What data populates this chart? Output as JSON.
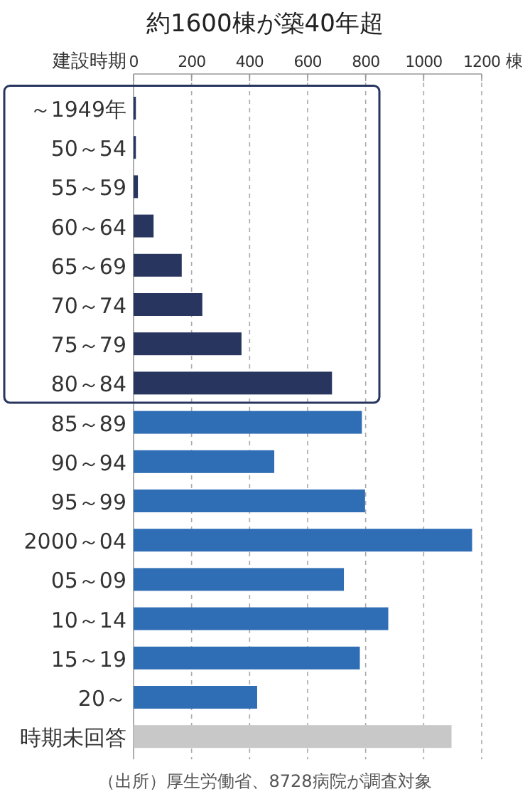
{
  "chart_data": {
    "type": "bar",
    "orientation": "horizontal",
    "title": "約1600棟が築40年超",
    "ylabel": "建設時期",
    "xlabel": "棟",
    "categories": [
      "～1949年",
      "50～54",
      "55～59",
      "60～64",
      "65～69",
      "70～74",
      "75～79",
      "80～84",
      "85～89",
      "90～94",
      "95～99",
      "2000～04",
      "05～09",
      "10～14",
      "15～19",
      "20～",
      "時期未回答"
    ],
    "values": [
      8,
      8,
      15,
      69,
      166,
      237,
      372,
      684,
      787,
      485,
      798,
      1167,
      725,
      878,
      780,
      426,
      1096
    ],
    "colors": [
      "#27355f",
      "#27355f",
      "#27355f",
      "#27355f",
      "#27355f",
      "#27355f",
      "#27355f",
      "#27355f",
      "#2f6db5",
      "#2f6db5",
      "#2f6db5",
      "#2f6db5",
      "#2f6db5",
      "#2f6db5",
      "#2f6db5",
      "#2f6db5",
      "#c8c8c8"
    ],
    "xlim": [
      0,
      1200
    ],
    "xticks": [
      0,
      200,
      400,
      600,
      800,
      1000,
      1200
    ],
    "grid": "x",
    "annotations": [
      "（出所）厚生労働省、8728病院が調査対象"
    ]
  }
}
